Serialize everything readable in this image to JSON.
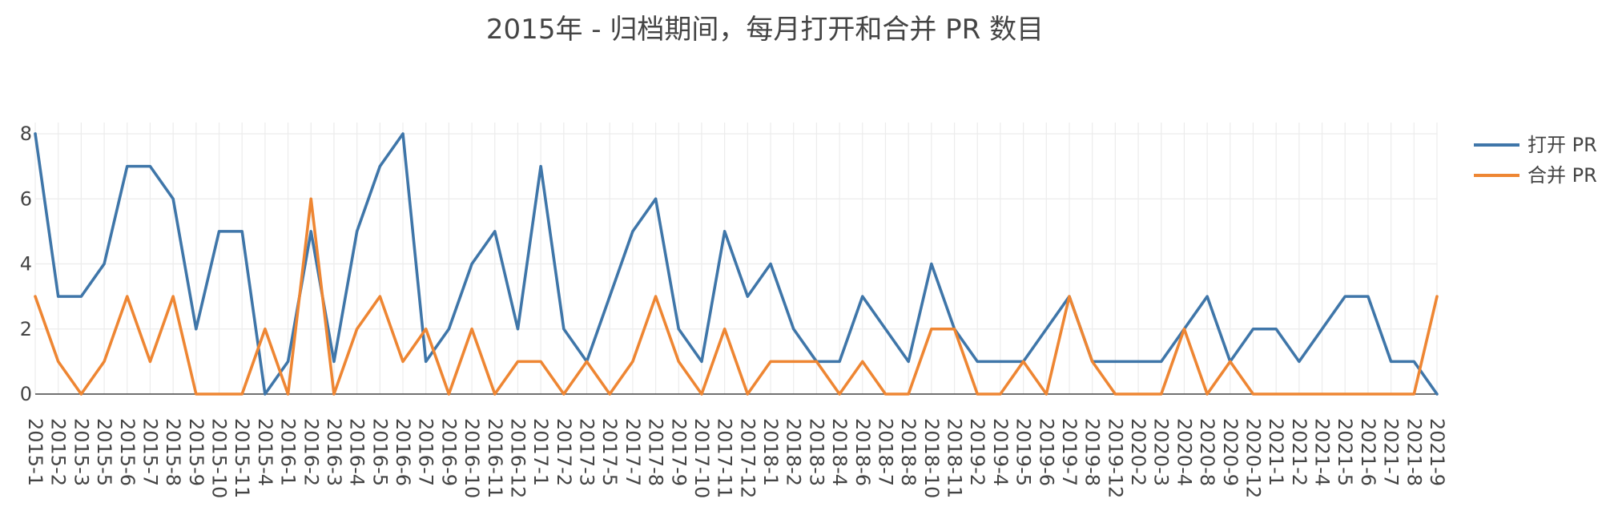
{
  "chart_data": {
    "type": "line",
    "title": "2015年 - 归档期间，每月打开和合并 PR 数目",
    "xlabel": "",
    "ylabel": "",
    "ylim": [
      0,
      8
    ],
    "yticks": [
      0,
      2,
      4,
      6,
      8
    ],
    "grid": true,
    "legend_position": "top-right",
    "categories": [
      "2015-1",
      "2015-2",
      "2015-3",
      "2015-5",
      "2015-6",
      "2015-7",
      "2015-8",
      "2015-9",
      "2015-10",
      "2015-11",
      "2015-4",
      "2016-1",
      "2016-2",
      "2016-3",
      "2016-4",
      "2016-5",
      "2016-6",
      "2016-7",
      "2016-9",
      "2016-10",
      "2016-11",
      "2016-12",
      "2017-1",
      "2017-2",
      "2017-3",
      "2017-5",
      "2017-7",
      "2017-8",
      "2017-9",
      "2017-10",
      "2017-11",
      "2017-12",
      "2018-1",
      "2018-2",
      "2018-3",
      "2018-4",
      "2018-6",
      "2018-7",
      "2018-8",
      "2018-10",
      "2018-11",
      "2019-2",
      "2019-4",
      "2019-5",
      "2019-6",
      "2019-7",
      "2019-8",
      "2019-12",
      "2020-2",
      "2020-3",
      "2020-4",
      "2020-8",
      "2020-9",
      "2020-12",
      "2021-1",
      "2021-2",
      "2021-4",
      "2021-5",
      "2021-6",
      "2021-7",
      "2021-8",
      "2021-9"
    ],
    "series": [
      {
        "name": "打开 PR",
        "color": "#3f76a9",
        "values": [
          8,
          3,
          3,
          4,
          7,
          7,
          6,
          2,
          5,
          5,
          0,
          1,
          5,
          1,
          5,
          7,
          8,
          1,
          2,
          4,
          5,
          2,
          7,
          2,
          1,
          3,
          5,
          6,
          2,
          1,
          5,
          3,
          4,
          2,
          1,
          1,
          3,
          2,
          1,
          4,
          2,
          1,
          1,
          1,
          2,
          3,
          1,
          1,
          1,
          1,
          2,
          3,
          1,
          2,
          2,
          1,
          2,
          3,
          3,
          1,
          1,
          0
        ]
      },
      {
        "name": "合并 PR",
        "color": "#ee8633",
        "values": [
          3,
          1,
          0,
          1,
          3,
          1,
          3,
          0,
          0,
          0,
          2,
          0,
          6,
          0,
          2,
          3,
          1,
          2,
          0,
          2,
          0,
          1,
          1,
          0,
          1,
          0,
          1,
          3,
          1,
          0,
          2,
          0,
          1,
          1,
          1,
          0,
          1,
          0,
          0,
          2,
          2,
          0,
          0,
          1,
          0,
          3,
          1,
          0,
          0,
          0,
          2,
          0,
          1,
          0,
          0,
          0,
          0,
          0,
          0,
          0,
          0,
          3
        ]
      }
    ]
  }
}
